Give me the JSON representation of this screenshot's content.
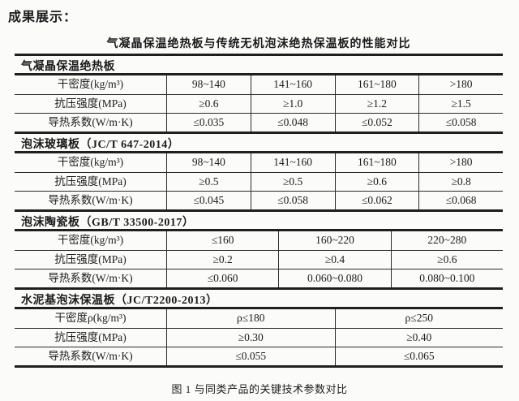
{
  "page": {
    "heading": "成果展示：",
    "caption": "图 1 与同类产品的关键技术参数对比"
  },
  "colors": {
    "background": "#fbfbfa",
    "ink": "#1c1c1c",
    "rule": "#1f1f1f"
  },
  "table": {
    "title": "气凝晶保温绝热板与传统无机泡沫绝热保温板的性能对比",
    "sections": [
      {
        "name": "气凝晶保温绝热板",
        "rows": [
          {
            "label": "干密度(kg/m³)",
            "values": [
              "98~140",
              "141~160",
              "161~180",
              ">180"
            ]
          },
          {
            "label": "抗压强度(MPa)",
            "values": [
              "≥0.6",
              "≥1.0",
              "≥1.2",
              "≥1.5"
            ]
          },
          {
            "label": "导热系数(W/m·K)",
            "values": [
              "≤0.035",
              "≤0.048",
              "≤0.052",
              "≤0.058"
            ]
          }
        ]
      },
      {
        "name": "泡沫玻璃板（JC/T 647-2014）",
        "rows": [
          {
            "label": "干密度(kg/m³)",
            "values": [
              "98~140",
              "141~160",
              "161~180",
              ">180"
            ]
          },
          {
            "label": "抗压强度(MPa)",
            "values": [
              "≥0.5",
              "≥0.5",
              "≥0.6",
              "≥0.8"
            ]
          },
          {
            "label": "导热系数(W/m·K)",
            "values": [
              "≤0.045",
              "≤0.058",
              "≤0.062",
              "≤0.068"
            ]
          }
        ]
      },
      {
        "name": "泡沫陶瓷板（GB/T 33500-2017）",
        "rows": [
          {
            "label": "干密度(kg/m³)",
            "values": [
              "≤160",
              "160~220",
              "220~280"
            ]
          },
          {
            "label": "抗压强度(MPa)",
            "values": [
              "≥0.2",
              "≥0.4",
              "≥0.6"
            ]
          },
          {
            "label": "导热系数(W/m·K)",
            "values": [
              "≤0.060",
              "0.060~0.080",
              "0.080~0.100"
            ]
          }
        ]
      },
      {
        "name": "水泥基泡沫保温板（JC/T2200-2013）",
        "rows": [
          {
            "label": "干密度ρ(kg/m³)",
            "values": [
              "ρ≤180",
              "ρ≤250"
            ]
          },
          {
            "label": "抗压强度(MPa)",
            "values": [
              "≥0.30",
              "≥0.40"
            ]
          },
          {
            "label": "导热系数(W/m·K)",
            "values": [
              "≤0.055",
              "≤0.065"
            ]
          }
        ]
      }
    ]
  }
}
